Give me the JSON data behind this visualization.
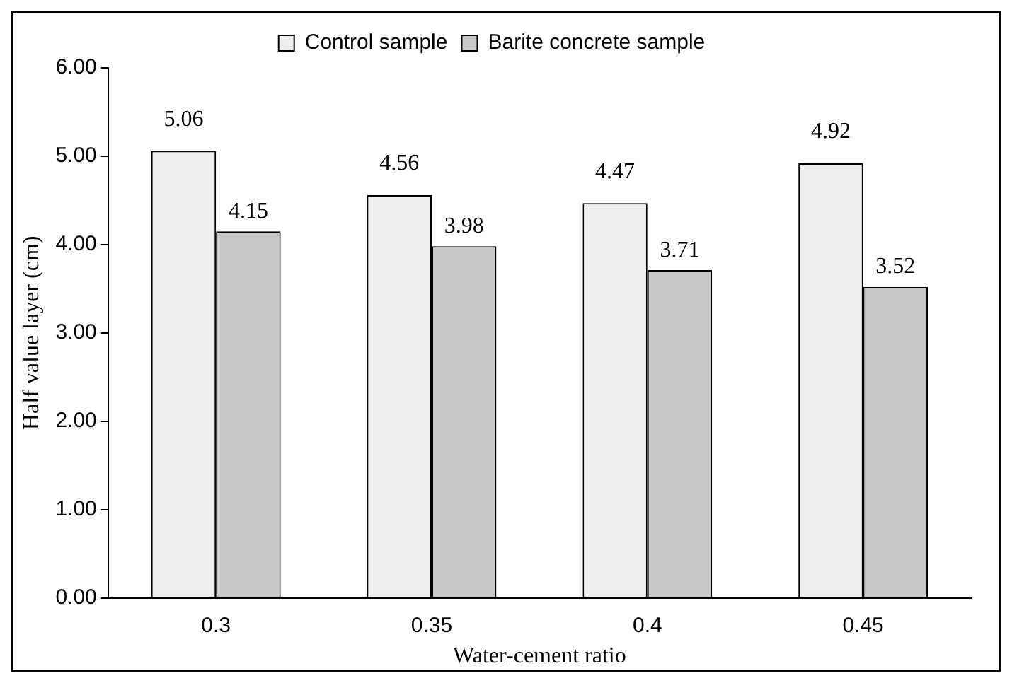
{
  "chart_data": {
    "type": "bar",
    "xlabel": "Water-cement ratio",
    "ylabel": "Half value layer (cm)",
    "categories": [
      "0.3",
      "0.35",
      "0.4",
      "0.45"
    ],
    "series": [
      {
        "name": "Control sample",
        "color": "#eeeeee",
        "values": [
          5.06,
          4.56,
          4.47,
          4.92
        ]
      },
      {
        "name": "Barite concrete sample",
        "color": "#c8c8c8",
        "values": [
          4.15,
          3.98,
          3.71,
          3.52
        ]
      }
    ],
    "ylim": [
      0,
      6
    ],
    "yticks": [
      {
        "value": 0,
        "label": "0.00"
      },
      {
        "value": 1,
        "label": "1.00"
      },
      {
        "value": 2,
        "label": "2.00"
      },
      {
        "value": 3,
        "label": "3.00"
      },
      {
        "value": 4,
        "label": "4.00"
      },
      {
        "value": 5,
        "label": "5.00"
      },
      {
        "value": 6,
        "label": "6.00"
      }
    ],
    "data_labels": true,
    "legend": "top",
    "grid": false
  }
}
